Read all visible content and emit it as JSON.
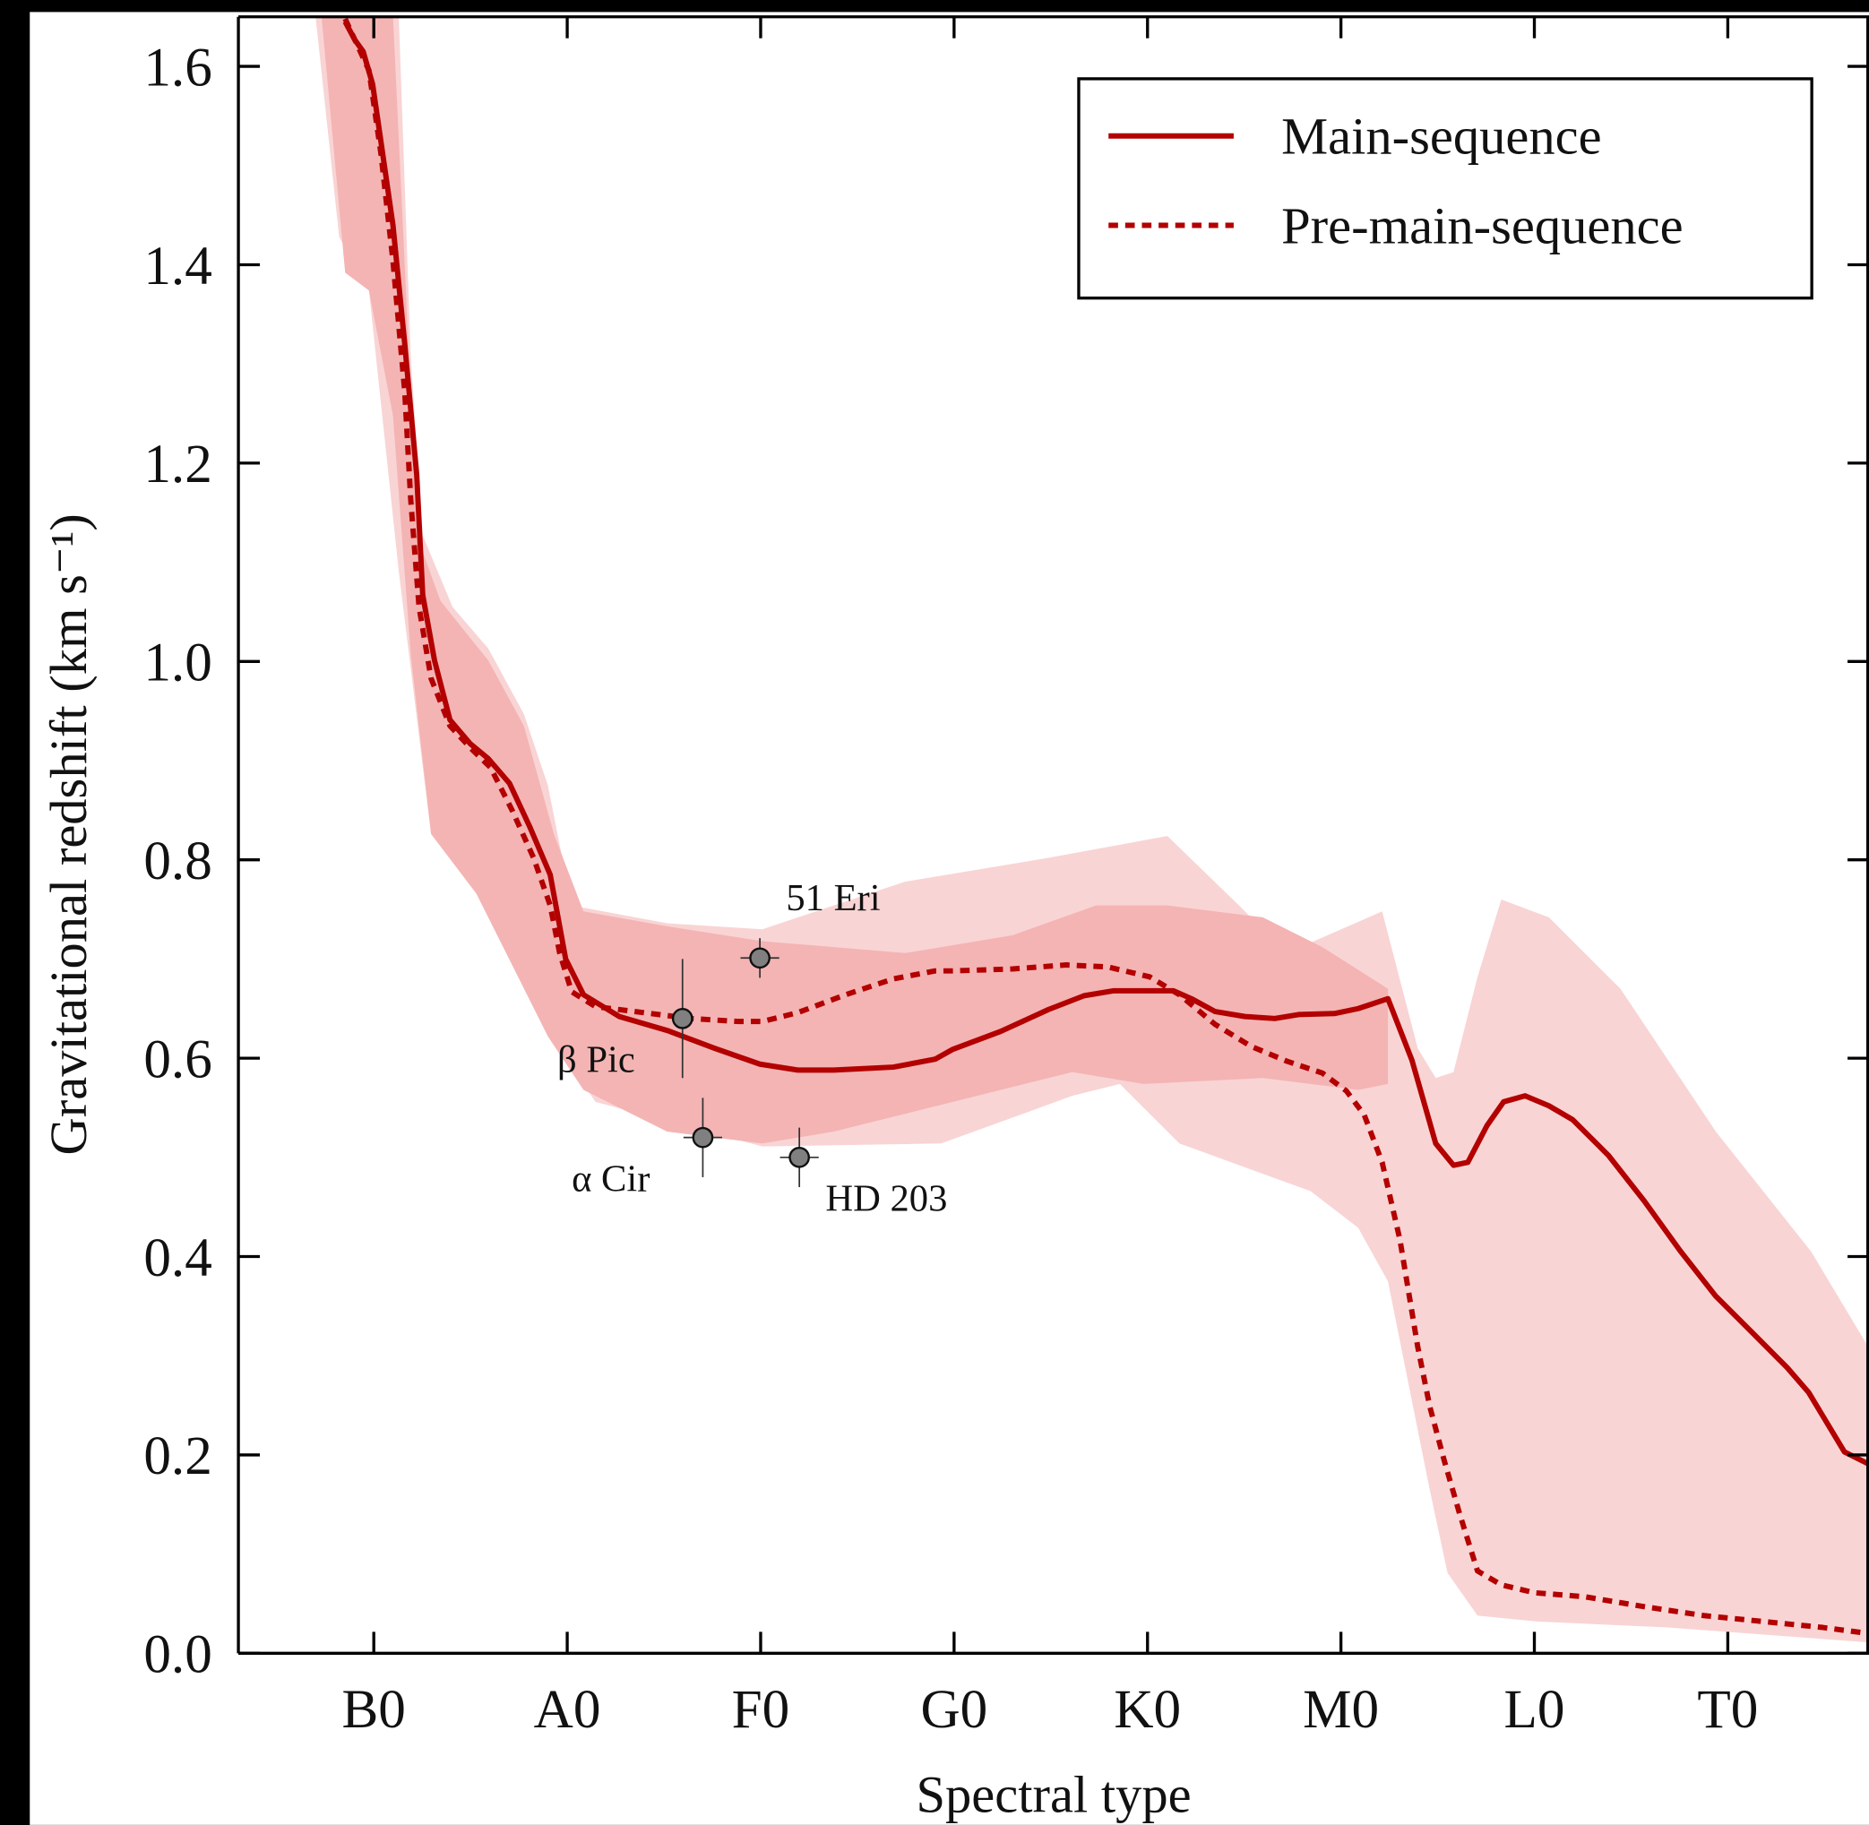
{
  "chart_data": {
    "type": "line",
    "xlabel": "Spectral type",
    "ylabel": "Gravitational redshift (km s⁻¹)",
    "xlim": [
      3,
      87.3
    ],
    "ylim": [
      0,
      1.65
    ],
    "xticks": [
      {
        "value": 10,
        "label": "B0"
      },
      {
        "value": 20,
        "label": "A0"
      },
      {
        "value": 30,
        "label": "F0"
      },
      {
        "value": 40,
        "label": "G0"
      },
      {
        "value": 50,
        "label": "K0"
      },
      {
        "value": 60,
        "label": "M0"
      },
      {
        "value": 70,
        "label": "L0"
      },
      {
        "value": 80,
        "label": "T0"
      }
    ],
    "yticks": [
      {
        "value": 0,
        "label": "0.0"
      },
      0.2,
      0.4,
      0.6,
      0.8,
      {
        "value": 1,
        "label": "1.0"
      },
      1.2,
      1.4,
      1.6
    ],
    "legend": "upper right",
    "series": [
      {
        "name": "Main-sequence",
        "color": "#b30000",
        "dash": false,
        "x": [
          8.52,
          9.01,
          9.45,
          9.94,
          10.37,
          10.99,
          11.6,
          12.22,
          12.53,
          13.14,
          13.94,
          14.99,
          15.92,
          17.02,
          18.07,
          19.12,
          19.92,
          20.84,
          22.69,
          25.16,
          27.62,
          29.96,
          31.93,
          33.78,
          36.86,
          39.02,
          39.94,
          42.41,
          44.87,
          46.72,
          48.26,
          51.34,
          52.27,
          53.5,
          55.04,
          56.58,
          57.81,
          59.66,
          60.89,
          62.43,
          63.67,
          64.9,
          65.82,
          66.56,
          67.55,
          68.41,
          69.52,
          70.75,
          71.98,
          73.83,
          75.68,
          77.53,
          79.38,
          81.23,
          83.07,
          84.18,
          84.92,
          86.03,
          87.26
        ],
        "values": [
          1.645,
          1.627,
          1.615,
          1.582,
          1.524,
          1.44,
          1.32,
          1.188,
          1.067,
          1.001,
          0.941,
          0.917,
          0.902,
          0.877,
          0.833,
          0.785,
          0.7,
          0.664,
          0.642,
          0.628,
          0.61,
          0.594,
          0.588,
          0.588,
          0.591,
          0.599,
          0.609,
          0.627,
          0.649,
          0.663,
          0.668,
          0.668,
          0.66,
          0.647,
          0.642,
          0.64,
          0.644,
          0.645,
          0.65,
          0.66,
          0.598,
          0.514,
          0.492,
          0.495,
          0.532,
          0.556,
          0.562,
          0.552,
          0.538,
          0.502,
          0.456,
          0.406,
          0.36,
          0.324,
          0.288,
          0.263,
          0.239,
          0.203,
          0.191
        ]
      },
      {
        "name": "Pre-main-sequence",
        "color": "#b30000",
        "dash": true,
        "x": [
          8.52,
          9.75,
          10.37,
          10.99,
          11.6,
          11.91,
          12.34,
          12.96,
          13.94,
          14.99,
          16.04,
          17.15,
          18.26,
          19.12,
          19.61,
          20.23,
          21.46,
          23.92,
          26.39,
          28.85,
          30.09,
          31.93,
          34.4,
          36.86,
          39.02,
          39.94,
          43.03,
          45.8,
          47.95,
          50.11,
          51.65,
          53.5,
          55.35,
          57.2,
          59.04,
          60.28,
          61.2,
          62.13,
          63.05,
          63.97,
          64.59,
          65.33,
          66.13,
          67.06,
          68.29,
          70.01,
          72.6,
          75.68,
          78.76,
          81.84,
          84.92,
          87.26
        ],
        "values": [
          1.648,
          1.596,
          1.512,
          1.404,
          1.272,
          1.163,
          1.055,
          0.983,
          0.935,
          0.913,
          0.893,
          0.85,
          0.802,
          0.754,
          0.706,
          0.667,
          0.652,
          0.646,
          0.64,
          0.637,
          0.637,
          0.646,
          0.664,
          0.68,
          0.688,
          0.688,
          0.69,
          0.694,
          0.692,
          0.682,
          0.664,
          0.634,
          0.612,
          0.597,
          0.585,
          0.567,
          0.543,
          0.495,
          0.417,
          0.309,
          0.249,
          0.195,
          0.141,
          0.083,
          0.069,
          0.061,
          0.057,
          0.047,
          0.038,
          0.032,
          0.026,
          0.02
        ]
      }
    ],
    "bands": [
      {
        "color": "#f9d4d4",
        "upper": {
          "x": [
            11.29,
            11.91,
            12.53,
            14.07,
            15.92,
            17.76,
            19.0,
            20.23,
            25.16,
            30.09,
            37.48,
            44.87,
            51.03,
            54.73,
            57.2,
            62.13,
            63.97,
            64.9,
            65.82,
            67.06,
            68.29,
            70.75,
            74.45,
            79.38,
            84.31,
            87.26
          ],
          "values": [
            1.652,
            1.308,
            1.127,
            1.055,
            1.013,
            0.947,
            0.875,
            0.754,
            0.736,
            0.73,
            0.778,
            0.802,
            0.824,
            0.754,
            0.706,
            0.748,
            0.61,
            0.58,
            0.586,
            0.682,
            0.76,
            0.742,
            0.67,
            0.526,
            0.405,
            0.309
          ]
        },
        "lower": {
          "x": [
            6.98,
            8.21,
            9.75,
            11.29,
            12.96,
            15.61,
            18.38,
            19.61,
            21.46,
            30.09,
            39.33,
            46.11,
            48.57,
            51.65,
            58.43,
            60.89,
            62.43,
            64.59,
            65.51,
            67.06,
            70.14,
            76.91,
            87.26
          ],
          "values": [
            1.652,
            1.428,
            1.374,
            1.091,
            0.826,
            0.778,
            0.67,
            0.61,
            0.556,
            0.511,
            0.514,
            0.562,
            0.574,
            0.514,
            0.466,
            0.429,
            0.375,
            0.165,
            0.081,
            0.038,
            0.032,
            0.026,
            0.011
          ]
        }
      },
      {
        "color": "#f4b4b4",
        "upper": {
          "x": [
            10.99,
            11.6,
            12.22,
            13.45,
            15.92,
            17.76,
            19.31,
            20.84,
            25.16,
            30.09,
            37.48,
            43.03,
            47.34,
            51.03,
            55.96,
            59.04,
            62.43
          ],
          "values": [
            1.652,
            1.4,
            1.127,
            1.061,
            1.001,
            0.935,
            0.826,
            0.748,
            0.733,
            0.718,
            0.706,
            0.724,
            0.754,
            0.754,
            0.742,
            0.712,
            0.67
          ]
        },
        "lower": {
          "x": [
            7.29,
            8.52,
            9.75,
            10.99,
            11.91,
            12.96,
            15.3,
            17.15,
            19.0,
            20.84,
            25.16,
            30.09,
            33.78,
            39.94,
            46.11,
            49.8,
            55.96,
            60.89,
            62.43
          ],
          "values": [
            1.652,
            1.392,
            1.374,
            1.248,
            1.007,
            0.826,
            0.766,
            0.694,
            0.622,
            0.568,
            0.526,
            0.514,
            0.526,
            0.556,
            0.586,
            0.574,
            0.58,
            0.568,
            0.574
          ]
        }
      }
    ],
    "points": {
      "color": "#808080",
      "labels": [
        "β Pic",
        "51 Eri",
        "α Cir",
        "HD 203"
      ],
      "x": [
        25.96,
        29.96,
        27.01,
        32.0
      ],
      "values": [
        0.64,
        0.701,
        0.52,
        0.5
      ],
      "xerr": [
        0,
        1.0,
        1.0,
        1.0
      ],
      "yerr": [
        0.06,
        0.02,
        0.04,
        0.03
      ]
    }
  }
}
